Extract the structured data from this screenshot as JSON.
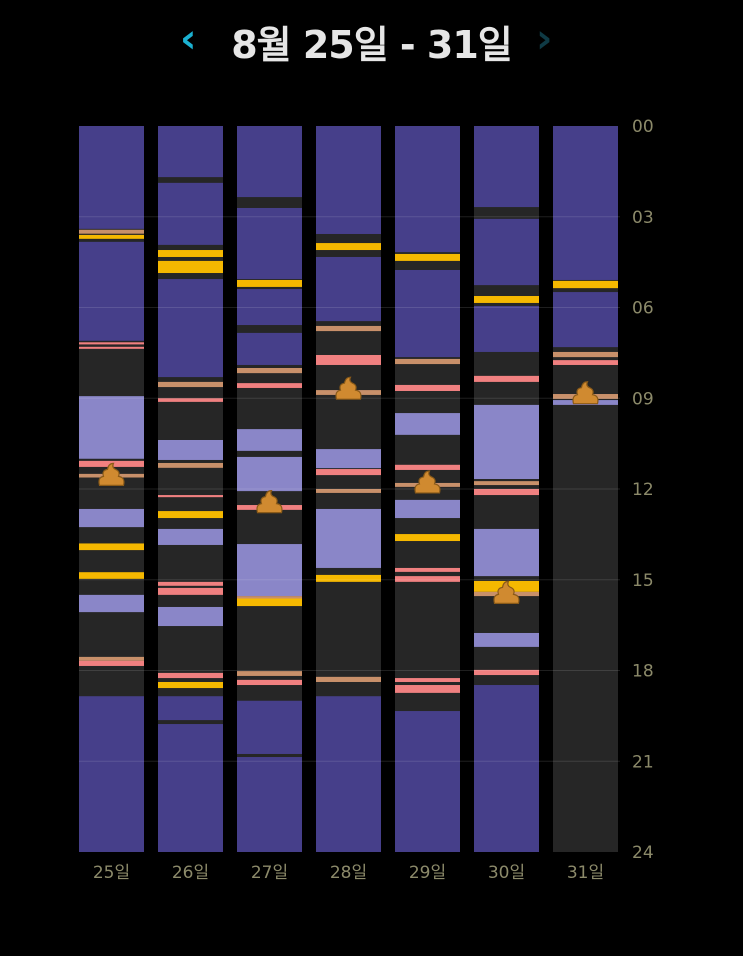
{
  "header": {
    "title": "8월 25일 - 31일",
    "prev_icon": "chevron-left-icon",
    "next_icon": "chevron-right-icon"
  },
  "chart_data": {
    "type": "bar",
    "orientation": "vertical-timeline",
    "categories": [
      "25일",
      "26일",
      "27일",
      "28일",
      "29일",
      "30일",
      "31일"
    ],
    "y_ticks": [
      "00",
      "03",
      "06",
      "09",
      "12",
      "15",
      "18",
      "21",
      "24"
    ],
    "ylim": [
      0,
      24
    ],
    "grid": true,
    "colors": {
      "background": "#262626",
      "dark": "#463f8a",
      "light": "#8a86c8",
      "yellow": "#f5b800",
      "pink": "#f08080",
      "tan": "#c8906a",
      "poop": "#d08a30"
    },
    "days": [
      {
        "segments": [
          [
            "dark",
            0,
            3.4
          ],
          [
            "tan",
            3.43,
            3.56
          ],
          [
            "yellow",
            3.6,
            3.73
          ],
          [
            "dark",
            3.83,
            7.1
          ],
          [
            "pink",
            7.15,
            7.22
          ],
          [
            "pink",
            7.3,
            7.36
          ],
          [
            "light",
            8.93,
            11.0
          ],
          [
            "pink",
            11.07,
            11.27
          ],
          [
            "tan",
            11.5,
            11.62
          ],
          [
            "light",
            12.66,
            13.26
          ],
          [
            "yellow",
            13.8,
            14.02
          ],
          [
            "yellow",
            14.75,
            14.97
          ],
          [
            "light",
            15.5,
            16.07
          ],
          [
            "tan",
            17.55,
            17.68
          ],
          [
            "pink",
            17.68,
            17.85
          ],
          [
            "dark",
            18.85,
            24
          ]
        ],
        "poop": [
          11.55
        ]
      },
      {
        "segments": [
          [
            "dark",
            0,
            1.69
          ],
          [
            "dark",
            1.88,
            3.93
          ],
          [
            "yellow",
            4.1,
            4.33
          ],
          [
            "yellow",
            4.46,
            4.86
          ],
          [
            "dark",
            5.06,
            8.3
          ],
          [
            "tan",
            8.46,
            8.63
          ],
          [
            "pink",
            9.0,
            9.12
          ],
          [
            "light",
            10.38,
            11.04
          ],
          [
            "tan",
            11.14,
            11.3
          ],
          [
            "pink",
            12.2,
            12.27
          ],
          [
            "yellow",
            12.73,
            12.96
          ],
          [
            "light",
            13.32,
            13.85
          ],
          [
            "pink",
            15.07,
            15.2
          ],
          [
            "pink",
            15.27,
            15.5
          ],
          [
            "light",
            15.9,
            16.53
          ],
          [
            "pink",
            18.08,
            18.25
          ],
          [
            "yellow",
            18.38,
            18.58
          ],
          [
            "dark",
            18.85,
            19.64
          ],
          [
            "dark",
            19.77,
            24
          ]
        ],
        "poop": []
      },
      {
        "segments": [
          [
            "dark",
            0,
            2.35
          ],
          [
            "dark",
            2.71,
            5.06
          ],
          [
            "yellow",
            5.09,
            5.32
          ],
          [
            "dark",
            5.39,
            6.58
          ],
          [
            "dark",
            6.84,
            7.9
          ],
          [
            "tan",
            8.0,
            8.17
          ],
          [
            "pink",
            8.5,
            8.66
          ],
          [
            "light",
            10.02,
            10.74
          ],
          [
            "light",
            10.94,
            12.07
          ],
          [
            "pink",
            12.53,
            12.69
          ],
          [
            "light",
            13.82,
            15.54
          ],
          [
            "tan",
            15.54,
            15.62
          ],
          [
            "yellow",
            15.62,
            15.87
          ],
          [
            "tan",
            18.02,
            18.18
          ],
          [
            "pink",
            18.31,
            18.48
          ],
          [
            "dark",
            19.0,
            20.76
          ],
          [
            "dark",
            20.86,
            24
          ]
        ],
        "poop": [
          12.45
        ]
      },
      {
        "segments": [
          [
            "dark",
            0,
            3.57
          ],
          [
            "yellow",
            3.87,
            4.1
          ],
          [
            "dark",
            4.33,
            6.45
          ],
          [
            "tan",
            6.61,
            6.78
          ],
          [
            "pink",
            7.57,
            7.9
          ],
          [
            "tan",
            8.73,
            8.89
          ],
          [
            "light",
            10.68,
            11.31
          ],
          [
            "pink",
            11.34,
            11.54
          ],
          [
            "tan",
            12.0,
            12.13
          ],
          [
            "light",
            12.66,
            14.61
          ],
          [
            "yellow",
            14.84,
            15.07
          ],
          [
            "tan",
            18.21,
            18.38
          ],
          [
            "dark",
            18.85,
            24
          ]
        ],
        "poop": [
          8.7
        ]
      },
      {
        "segments": [
          [
            "dark",
            0,
            4.17
          ],
          [
            "yellow",
            4.23,
            4.46
          ],
          [
            "dark",
            4.76,
            7.64
          ],
          [
            "tan",
            7.7,
            7.87
          ],
          [
            "pink",
            8.56,
            8.76
          ],
          [
            "light",
            9.49,
            10.21
          ],
          [
            "pink",
            11.2,
            11.37
          ],
          [
            "tan",
            11.8,
            11.93
          ],
          [
            "light",
            12.36,
            12.96
          ],
          [
            "yellow",
            13.49,
            13.72
          ],
          [
            "pink",
            14.61,
            14.74
          ],
          [
            "pink",
            14.88,
            15.07
          ],
          [
            "pink",
            18.25,
            18.38
          ],
          [
            "pink",
            18.48,
            18.74
          ],
          [
            "dark",
            19.34,
            24
          ]
        ],
        "poop": [
          11.8
        ]
      },
      {
        "segments": [
          [
            "dark",
            0,
            2.68
          ],
          [
            "dark",
            3.07,
            5.26
          ],
          [
            "yellow",
            5.62,
            5.85
          ],
          [
            "dark",
            5.95,
            7.47
          ],
          [
            "pink",
            8.26,
            8.46
          ],
          [
            "light",
            9.22,
            11.67
          ],
          [
            "tan",
            11.74,
            11.87
          ],
          [
            "pink",
            12.0,
            12.2
          ],
          [
            "light",
            13.32,
            14.88
          ],
          [
            "yellow",
            15.04,
            15.4
          ],
          [
            "tan",
            15.4,
            15.54
          ],
          [
            "light",
            16.76,
            17.22
          ],
          [
            "pink",
            17.98,
            18.15
          ],
          [
            "dark",
            18.48,
            24
          ]
        ],
        "poop": [
          15.45
        ]
      },
      {
        "segments": [
          [
            "dark",
            0,
            5.09
          ],
          [
            "yellow",
            5.12,
            5.36
          ],
          [
            "dark",
            5.49,
            7.31
          ],
          [
            "tan",
            7.47,
            7.64
          ],
          [
            "pink",
            7.74,
            7.9
          ],
          [
            "tan",
            8.86,
            9.02
          ],
          [
            "light",
            9.06,
            9.22
          ]
        ],
        "poop": [
          8.85
        ]
      }
    ]
  }
}
